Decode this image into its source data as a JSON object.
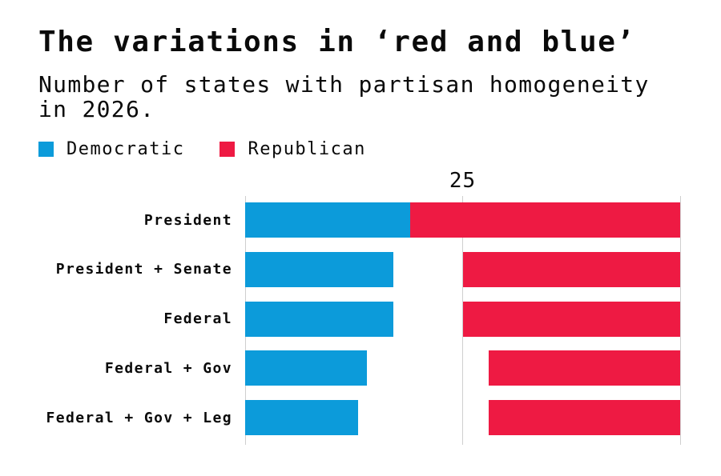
{
  "title": "The variations in ‘red and blue’",
  "subtitle": "Number of states with partisan homogeneity in 2026.",
  "legend": [
    {
      "label": "Democratic",
      "color": "#0C9BDA"
    },
    {
      "label": "Republican",
      "color": "#EE1A43"
    }
  ],
  "colors": {
    "democratic": "#0C9BDA",
    "republican": "#EE1A43",
    "gridline": "#CFCFCF",
    "text": "#0A0A0A",
    "background": "#FFFFFF"
  },
  "chart_data": {
    "type": "bar",
    "subtype": "horizontal-diverging",
    "title": "The variations in ‘red and blue’",
    "subtitle": "Number of states with partisan homogeneity in 2026.",
    "categories": [
      "President",
      "President + Senate",
      "Federal",
      "Federal + Gov",
      "Federal + Gov + Leg"
    ],
    "series": [
      {
        "name": "Democratic",
        "color": "#0C9BDA",
        "side": "left",
        "values": [
          19,
          17,
          17,
          14,
          13
        ]
      },
      {
        "name": "Republican",
        "color": "#EE1A43",
        "side": "right",
        "values": [
          31,
          25,
          25,
          22,
          22
        ]
      }
    ],
    "axis": {
      "min": 0,
      "max": 50,
      "ticks": [
        {
          "value": 25,
          "label": "25"
        }
      ],
      "gridlines_at": [
        0,
        25,
        50
      ]
    },
    "legend_position": "top-left",
    "grid": true,
    "notes": "Democratic bars grow rightward from the left axis (0); Republican bars grow leftward from the right axis (50)."
  }
}
